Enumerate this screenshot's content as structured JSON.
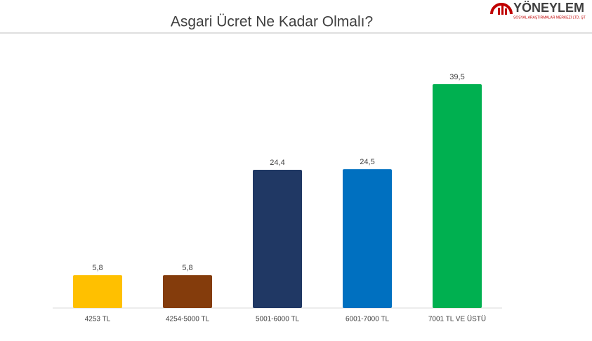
{
  "logo": {
    "name": "YÖNEYLEM",
    "subtitle": "SOSYAL ARAŞTIRMALAR MERKEZİ LTD. ŞT"
  },
  "chart_data": {
    "type": "bar",
    "title": "Asgari Ücret Ne Kadar Olmalı?",
    "categories": [
      "4253 TL",
      "4254-5000 TL",
      "5001-6000 TL",
      "6001-7000 TL",
      "7001 TL VE ÜSTÜ"
    ],
    "values": [
      5.8,
      5.8,
      24.4,
      24.5,
      39.5
    ],
    "value_labels": [
      "5,8",
      "5,8",
      "24,4",
      "24,5",
      "39,5"
    ],
    "colors": [
      "#ffc000",
      "#843c0c",
      "#203864",
      "#0070c0",
      "#00b050"
    ]
  }
}
